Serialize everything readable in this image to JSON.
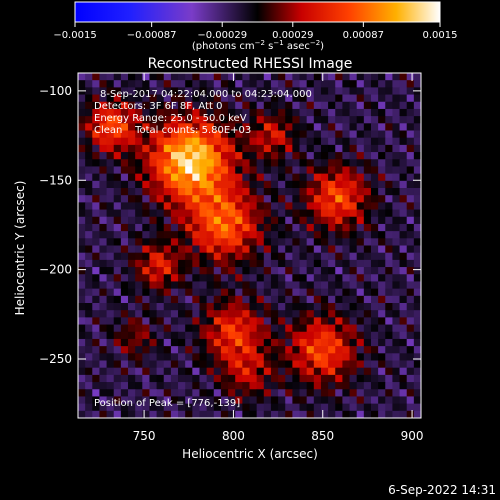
{
  "colorbar": {
    "ticks": [
      "−0.0015",
      "−0.00087",
      "−0.00029",
      "0.00029",
      "0.00087",
      "0.0015"
    ],
    "range": [
      -0.0015,
      0.0015
    ],
    "units_prefix": "(photons cm",
    "units_sup1": "−2",
    "units_mid1": " s",
    "units_sup2": "−1",
    "units_mid2": " asec",
    "units_sup3": "−2",
    "units_suffix": ")"
  },
  "chart_data": {
    "type": "heatmap",
    "title": "Reconstructed RHESSI Image",
    "xlabel": "Heliocentric X (arcsec)",
    "ylabel": "Heliocentric Y (arcsec)",
    "xlim": [
      713,
      905
    ],
    "ylim": [
      -283,
      -90
    ],
    "x_ticks": [
      750,
      800,
      850,
      900
    ],
    "y_ticks": [
      -100,
      -150,
      -200,
      -250
    ],
    "x_tick_labels": [
      "750",
      "800",
      "850",
      "900"
    ],
    "y_tick_labels": [
      "−100",
      "−150",
      "−200",
      "−250"
    ],
    "grid": false,
    "colormap": "blue-purple-black-red-orange-yellow-white",
    "sources": [
      {
        "x": 776,
        "y": -139,
        "peak": 0.0015,
        "sigma": 16
      },
      {
        "x": 732,
        "y": -120,
        "peak": 0.0009,
        "sigma": 10
      },
      {
        "x": 795,
        "y": -175,
        "peak": 0.001,
        "sigma": 14
      },
      {
        "x": 758,
        "y": -198,
        "peak": 0.0007,
        "sigma": 9
      },
      {
        "x": 858,
        "y": -160,
        "peak": 0.0009,
        "sigma": 12
      },
      {
        "x": 822,
        "y": -125,
        "peak": 0.0006,
        "sigma": 9
      },
      {
        "x": 850,
        "y": -245,
        "peak": 0.0009,
        "sigma": 13
      },
      {
        "x": 800,
        "y": -235,
        "peak": 0.0008,
        "sigma": 12
      },
      {
        "x": 808,
        "y": -258,
        "peak": 0.0005,
        "sigma": 10
      },
      {
        "x": 745,
        "y": -238,
        "peak": 0.0004,
        "sigma": 8
      }
    ],
    "annotations": {
      "time": "8-Sep-2017 04:22:04.000 to 04:23:04.000",
      "detectors": "Detectors: 3F 6F 8F, Att 0",
      "energy": "Energy Range: 25.0 - 50.0 keV",
      "clean": "Clean    Total counts: 5.80E+03",
      "peak": "Position of Peak = [776,-139]"
    }
  },
  "footer": {
    "timestamp": "6-Sep-2022 14:31"
  }
}
